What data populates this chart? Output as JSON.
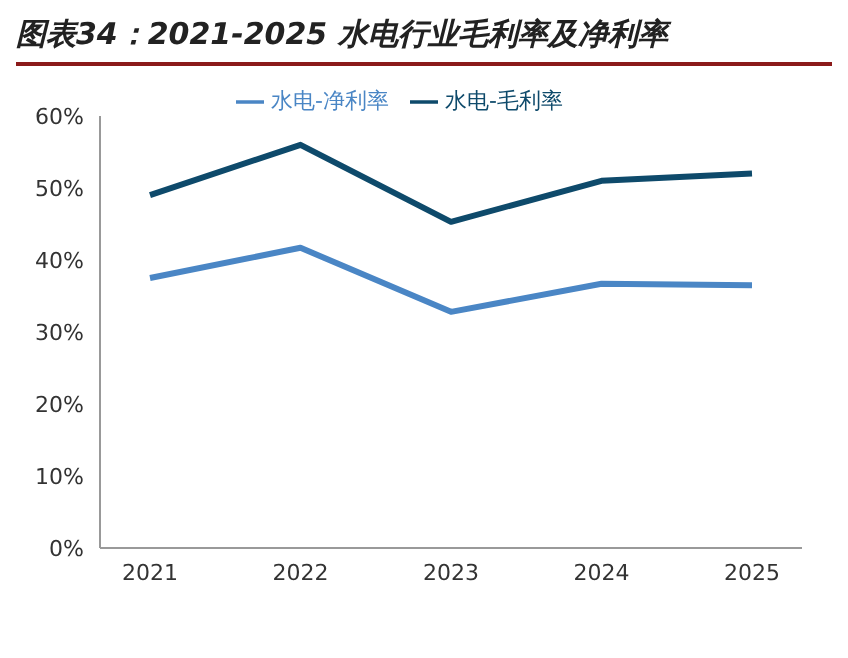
{
  "chart_data": {
    "type": "line",
    "title": "图表34：2021-2025 水电行业毛利率及净利率",
    "categories": [
      "2021",
      "2022",
      "2023",
      "2024",
      "2025"
    ],
    "series": [
      {
        "name": "水电-毛利率",
        "color": "#0e4a6b",
        "values": [
          49,
          56,
          45.3,
          51,
          52
        ]
      },
      {
        "name": "水电-净利率",
        "color": "#4a86c5",
        "values": [
          37.5,
          41.7,
          32.8,
          36.7,
          36.5
        ]
      }
    ],
    "ylim": [
      0,
      60
    ],
    "yticks": [
      {
        "value": 0,
        "label": "0%"
      },
      {
        "value": 10,
        "label": "10%"
      },
      {
        "value": 20,
        "label": "20%"
      },
      {
        "value": 30,
        "label": "30%"
      },
      {
        "value": 40,
        "label": "40%"
      },
      {
        "value": 50,
        "label": "50%"
      },
      {
        "value": 60,
        "label": "60%"
      }
    ],
    "legend": "top",
    "grid": false,
    "marker": "none",
    "line_style": "solid"
  }
}
